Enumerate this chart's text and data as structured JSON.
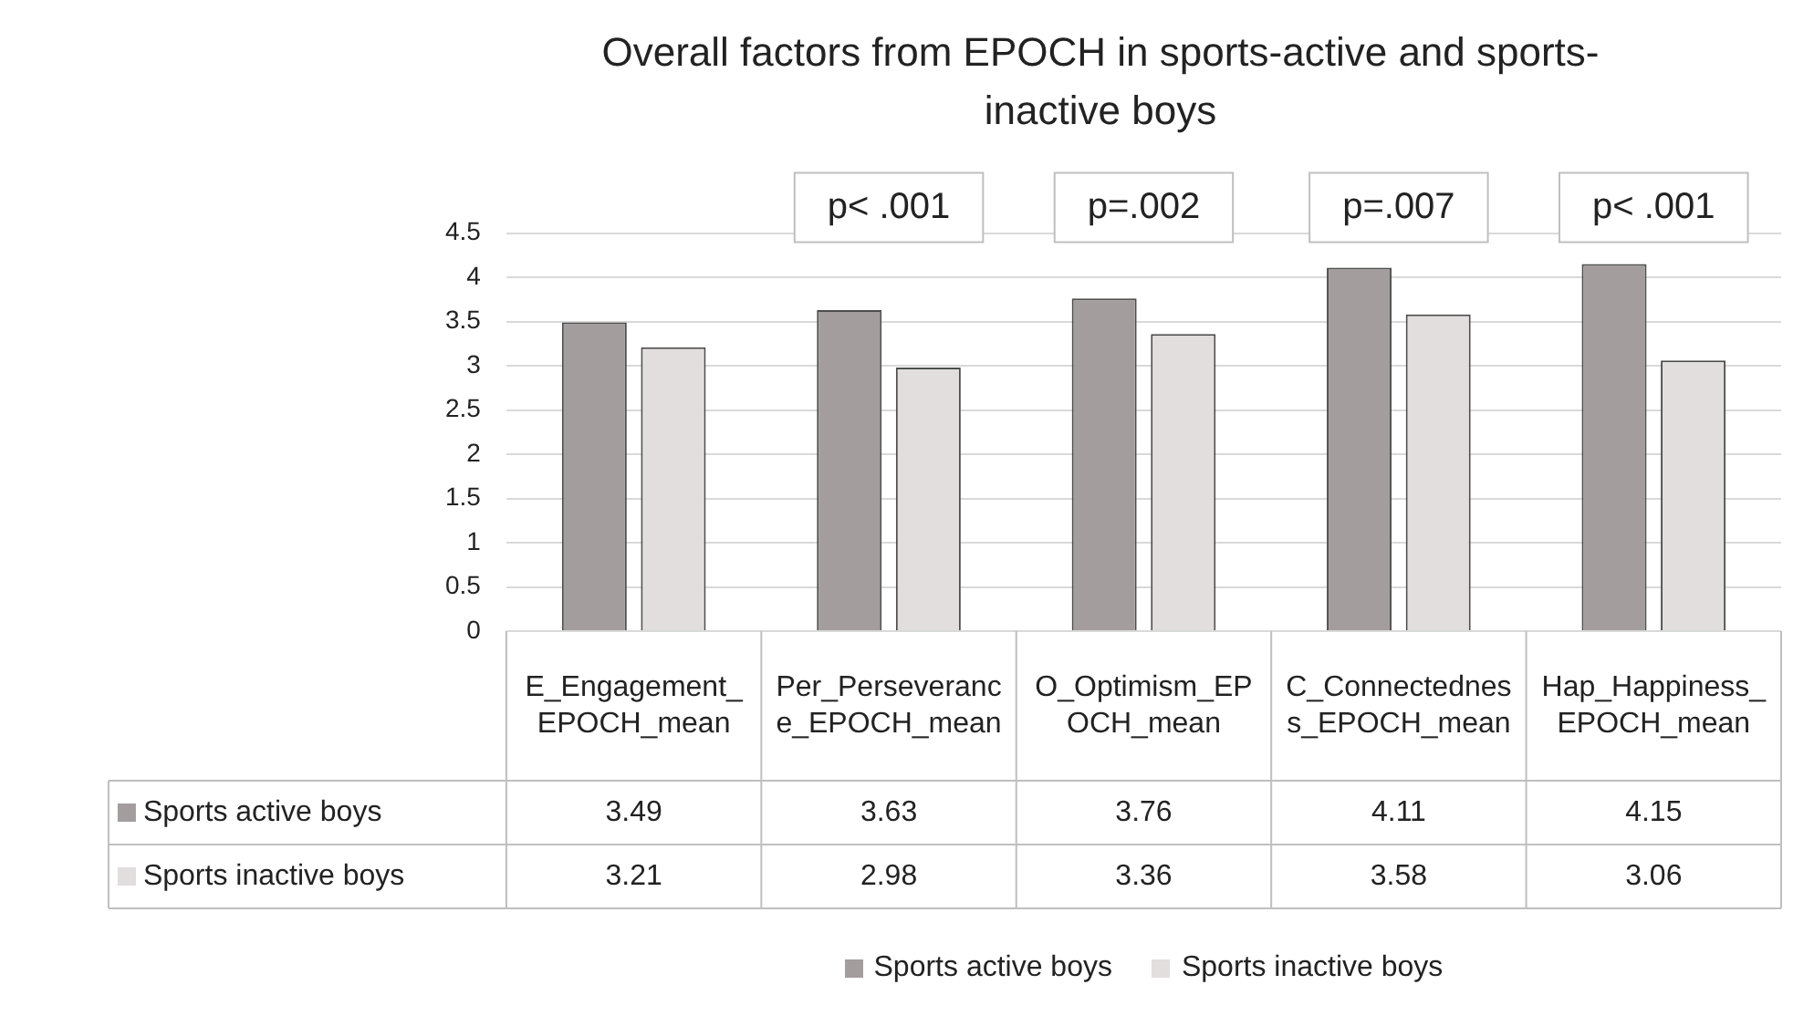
{
  "chart_data": {
    "type": "bar",
    "title": "Overall factors from EPOCH in sports-active and sports-inactive boys",
    "categories": [
      "E_Engagement_EPOCH_mean",
      "Per_Perseverance_EPOCH_mean",
      "O_Optimism_EPOCH_mean",
      "C_Connectedness_EPOCH_mean",
      "Hap_Happiness_EPOCH_mean"
    ],
    "series": [
      {
        "name": "Sports active boys",
        "color": "#a39d9d",
        "values": [
          3.49,
          3.63,
          3.76,
          4.11,
          4.15
        ]
      },
      {
        "name": "Sports inactive boys",
        "color": "#e2dede",
        "values": [
          3.21,
          2.98,
          3.36,
          3.58,
          3.06
        ]
      }
    ],
    "ylim": [
      0,
      4.5
    ],
    "yticks": [
      0,
      0.5,
      1,
      1.5,
      2,
      2.5,
      3,
      3.5,
      4,
      4.5
    ],
    "grid": "y",
    "legend": "bottom",
    "data_labels": true,
    "annotations": [
      "p< .001",
      "p=.002",
      "p=.007",
      "p< .001"
    ]
  }
}
